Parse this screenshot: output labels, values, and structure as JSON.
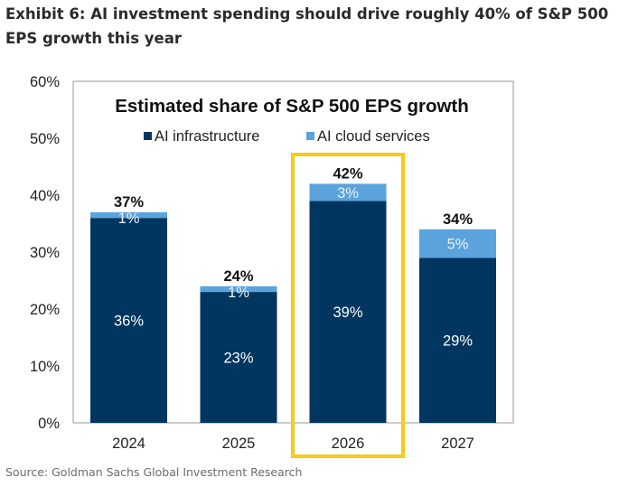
{
  "header": {
    "title": "Exhibit 6: AI investment spending should drive roughly 40% of S&P 500 EPS growth this year"
  },
  "footer": {
    "source": "Source: Goldman Sachs Global Investment Research"
  },
  "chart_data": {
    "type": "bar",
    "stacked": true,
    "title": "Estimated share of S&P 500 EPS growth",
    "categories": [
      "2024",
      "2025",
      "2026",
      "2027"
    ],
    "series": [
      {
        "name": "AI infrastructure",
        "values": [
          36,
          23,
          39,
          29
        ],
        "labels": [
          "36%",
          "23%",
          "39%",
          "29%"
        ],
        "color": "#003660"
      },
      {
        "name": "AI cloud services",
        "values": [
          1,
          1,
          3,
          5
        ],
        "labels": [
          "1%",
          "1%",
          "3%",
          "5%"
        ],
        "color": "#5ba3dc"
      }
    ],
    "totals": [
      "37%",
      "24%",
      "42%",
      "34%"
    ],
    "ylim": [
      0,
      60
    ],
    "yticks": [
      "0%",
      "10%",
      "20%",
      "30%",
      "40%",
      "50%",
      "60%"
    ],
    "yticks_values": [
      0,
      10,
      20,
      30,
      40,
      50,
      60
    ],
    "legend": "top-center",
    "grid": false,
    "highlight": {
      "category": "2026",
      "color": "#f7cb16"
    }
  }
}
